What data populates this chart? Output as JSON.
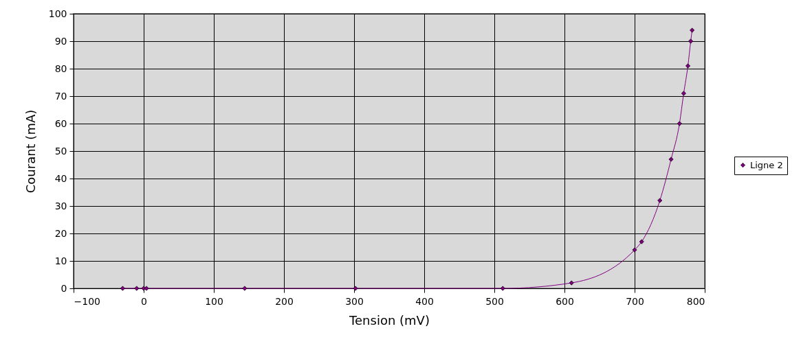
{
  "chart_data": {
    "type": "line",
    "xlabel": "Tension (mV)",
    "ylabel": "Courant (mA)",
    "x": [
      -30,
      -10,
      0,
      4,
      144,
      302,
      512,
      610,
      700,
      710,
      736,
      752,
      764,
      770,
      776,
      780,
      782
    ],
    "series": [
      {
        "name": "Ligne 2",
        "color": "#800080",
        "values": [
          0,
          0,
          0,
          0,
          0,
          0,
          0,
          2,
          14,
          17,
          32,
          47,
          60,
          71,
          81,
          90,
          94
        ]
      }
    ],
    "xlim": [
      -100,
      800
    ],
    "xticks": [
      -100,
      0,
      100,
      200,
      300,
      400,
      500,
      600,
      700,
      800
    ],
    "ylim": [
      0,
      100
    ],
    "yticks": [
      0,
      10,
      20,
      30,
      40,
      50,
      60,
      70,
      80,
      90,
      100
    ],
    "grid": true,
    "legend": "right",
    "marker": "diamond",
    "line_style": "solid"
  }
}
